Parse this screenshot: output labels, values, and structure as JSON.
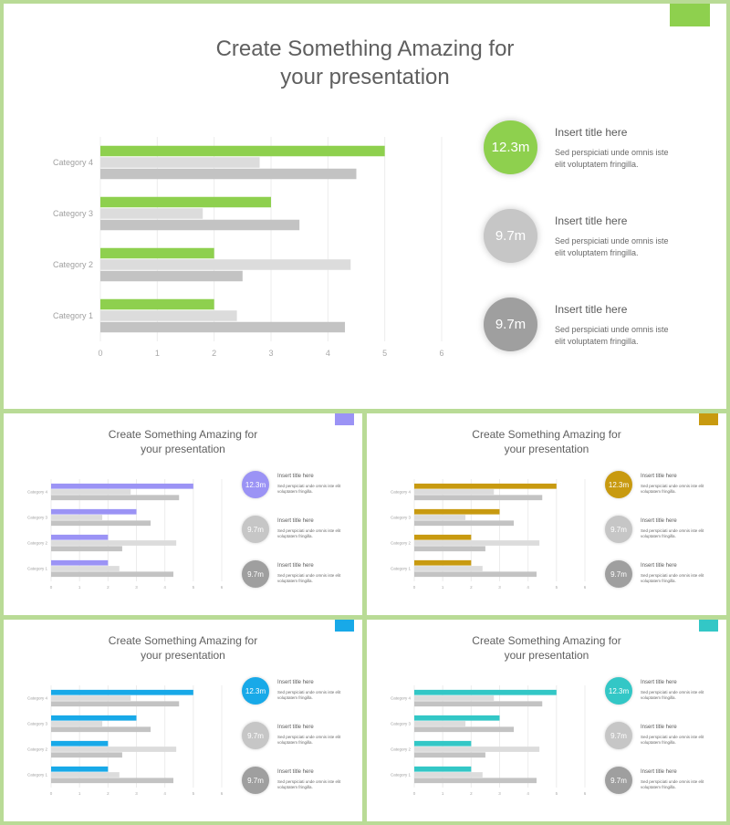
{
  "slides": [
    {
      "variant": "large",
      "accent": "#8ed04e",
      "title": [
        "Create Something Amazing for",
        "your presentation"
      ],
      "chart_data": {
        "type": "bar",
        "orientation": "horizontal",
        "categories": [
          "Category 1",
          "Category 2",
          "Category 3",
          "Category 4"
        ],
        "series": [
          {
            "values": [
              4.3,
              2.5,
              3.5,
              4.5
            ]
          },
          {
            "values": [
              2.4,
              4.4,
              1.8,
              2.8
            ]
          },
          {
            "values": [
              2,
              2,
              3,
              5
            ]
          }
        ],
        "xlim": [
          0,
          6
        ],
        "xticks": [
          0,
          1,
          2,
          3,
          4,
          5,
          6
        ]
      },
      "cards": [
        {
          "value": "12.3m",
          "title": "Insert title here",
          "desc": "Sed perspiciati unde omnis iste elit voluptatem fringilla."
        },
        {
          "value": "9.7m",
          "title": "Insert title here",
          "desc": "Sed perspiciati unde omnis iste elit voluptatem fringilla."
        },
        {
          "value": "9.7m",
          "title": "Insert title here",
          "desc": "Sed perspiciati unde omnis iste elit voluptatem fringilla."
        }
      ]
    },
    {
      "variant": "small",
      "accent": "#9b93f5",
      "title": [
        "Create Something Amazing for",
        "your presentation"
      ],
      "chart_data": {
        "type": "bar",
        "orientation": "horizontal",
        "categories": [
          "Category 1",
          "Category 2",
          "Category 3",
          "Category 4"
        ],
        "series": [
          {
            "values": [
              4.3,
              2.5,
              3.5,
              4.5
            ]
          },
          {
            "values": [
              2.4,
              4.4,
              1.8,
              2.8
            ]
          },
          {
            "values": [
              2,
              2,
              3,
              5
            ]
          }
        ],
        "xlim": [
          0,
          6
        ],
        "xticks": [
          0,
          1,
          2,
          3,
          4,
          5,
          6
        ]
      },
      "cards": [
        {
          "value": "12.3m",
          "title": "Insert title here",
          "desc": "Sed perspiciati unde omnis iste elit voluptatem fringilla."
        },
        {
          "value": "9.7m",
          "title": "Insert title here",
          "desc": "Sed perspiciati unde omnis iste elit voluptatem fringilla."
        },
        {
          "value": "9.7m",
          "title": "Insert title here",
          "desc": "Sed perspiciati unde omnis iste elit voluptatem fringilla."
        }
      ]
    },
    {
      "variant": "small",
      "accent": "#c89a10",
      "title": [
        "Create Something Amazing for",
        "your presentation"
      ],
      "chart_data": {
        "type": "bar",
        "orientation": "horizontal",
        "categories": [
          "Category 1",
          "Category 2",
          "Category 3",
          "Category 4"
        ],
        "series": [
          {
            "values": [
              4.3,
              2.5,
              3.5,
              4.5
            ]
          },
          {
            "values": [
              2.4,
              4.4,
              1.8,
              2.8
            ]
          },
          {
            "values": [
              2,
              2,
              3,
              5
            ]
          }
        ],
        "xlim": [
          0,
          6
        ],
        "xticks": [
          0,
          1,
          2,
          3,
          4,
          5,
          6
        ]
      },
      "cards": [
        {
          "value": "12.3m",
          "title": "Insert title here",
          "desc": "Sed perspiciati unde omnis iste elit voluptatem fringilla."
        },
        {
          "value": "9.7m",
          "title": "Insert title here",
          "desc": "Sed perspiciati unde omnis iste elit voluptatem fringilla."
        },
        {
          "value": "9.7m",
          "title": "Insert title here",
          "desc": "Sed perspiciati unde omnis iste elit voluptatem fringilla."
        }
      ]
    },
    {
      "variant": "small",
      "accent": "#18a9e8",
      "title": [
        "Create Something Amazing for",
        "your presentation"
      ],
      "chart_data": {
        "type": "bar",
        "orientation": "horizontal",
        "categories": [
          "Category 1",
          "Category 2",
          "Category 3",
          "Category 4"
        ],
        "series": [
          {
            "values": [
              4.3,
              2.5,
              3.5,
              4.5
            ]
          },
          {
            "values": [
              2.4,
              4.4,
              1.8,
              2.8
            ]
          },
          {
            "values": [
              2,
              2,
              3,
              5
            ]
          }
        ],
        "xlim": [
          0,
          6
        ],
        "xticks": [
          0,
          1,
          2,
          3,
          4,
          5,
          6
        ]
      },
      "cards": [
        {
          "value": "12.3m",
          "title": "Insert title here",
          "desc": "Sed perspiciati unde omnis iste elit voluptatem fringilla."
        },
        {
          "value": "9.7m",
          "title": "Insert title here",
          "desc": "Sed perspiciati unde omnis iste elit voluptatem fringilla."
        },
        {
          "value": "9.7m",
          "title": "Insert title here",
          "desc": "Sed perspiciati unde omnis iste elit voluptatem fringilla."
        }
      ]
    },
    {
      "variant": "small",
      "accent": "#33c7c6",
      "title": [
        "Create Something Amazing for",
        "your presentation"
      ],
      "chart_data": {
        "type": "bar",
        "orientation": "horizontal",
        "categories": [
          "Category 1",
          "Category 2",
          "Category 3",
          "Category 4"
        ],
        "series": [
          {
            "values": [
              4.3,
              2.5,
              3.5,
              4.5
            ]
          },
          {
            "values": [
              2.4,
              4.4,
              1.8,
              2.8
            ]
          },
          {
            "values": [
              2,
              2,
              3,
              5
            ]
          }
        ],
        "xlim": [
          0,
          6
        ],
        "xticks": [
          0,
          1,
          2,
          3,
          4,
          5,
          6
        ]
      },
      "cards": [
        {
          "value": "12.3m",
          "title": "Insert title here",
          "desc": "Sed perspiciati unde omnis iste elit voluptatem fringilla."
        },
        {
          "value": "9.7m",
          "title": "Insert title here",
          "desc": "Sed perspiciati unde omnis iste elit voluptatem fringilla."
        },
        {
          "value": "9.7m",
          "title": "Insert title here",
          "desc": "Sed perspiciati unde omnis iste elit voluptatem fringilla."
        }
      ]
    }
  ]
}
